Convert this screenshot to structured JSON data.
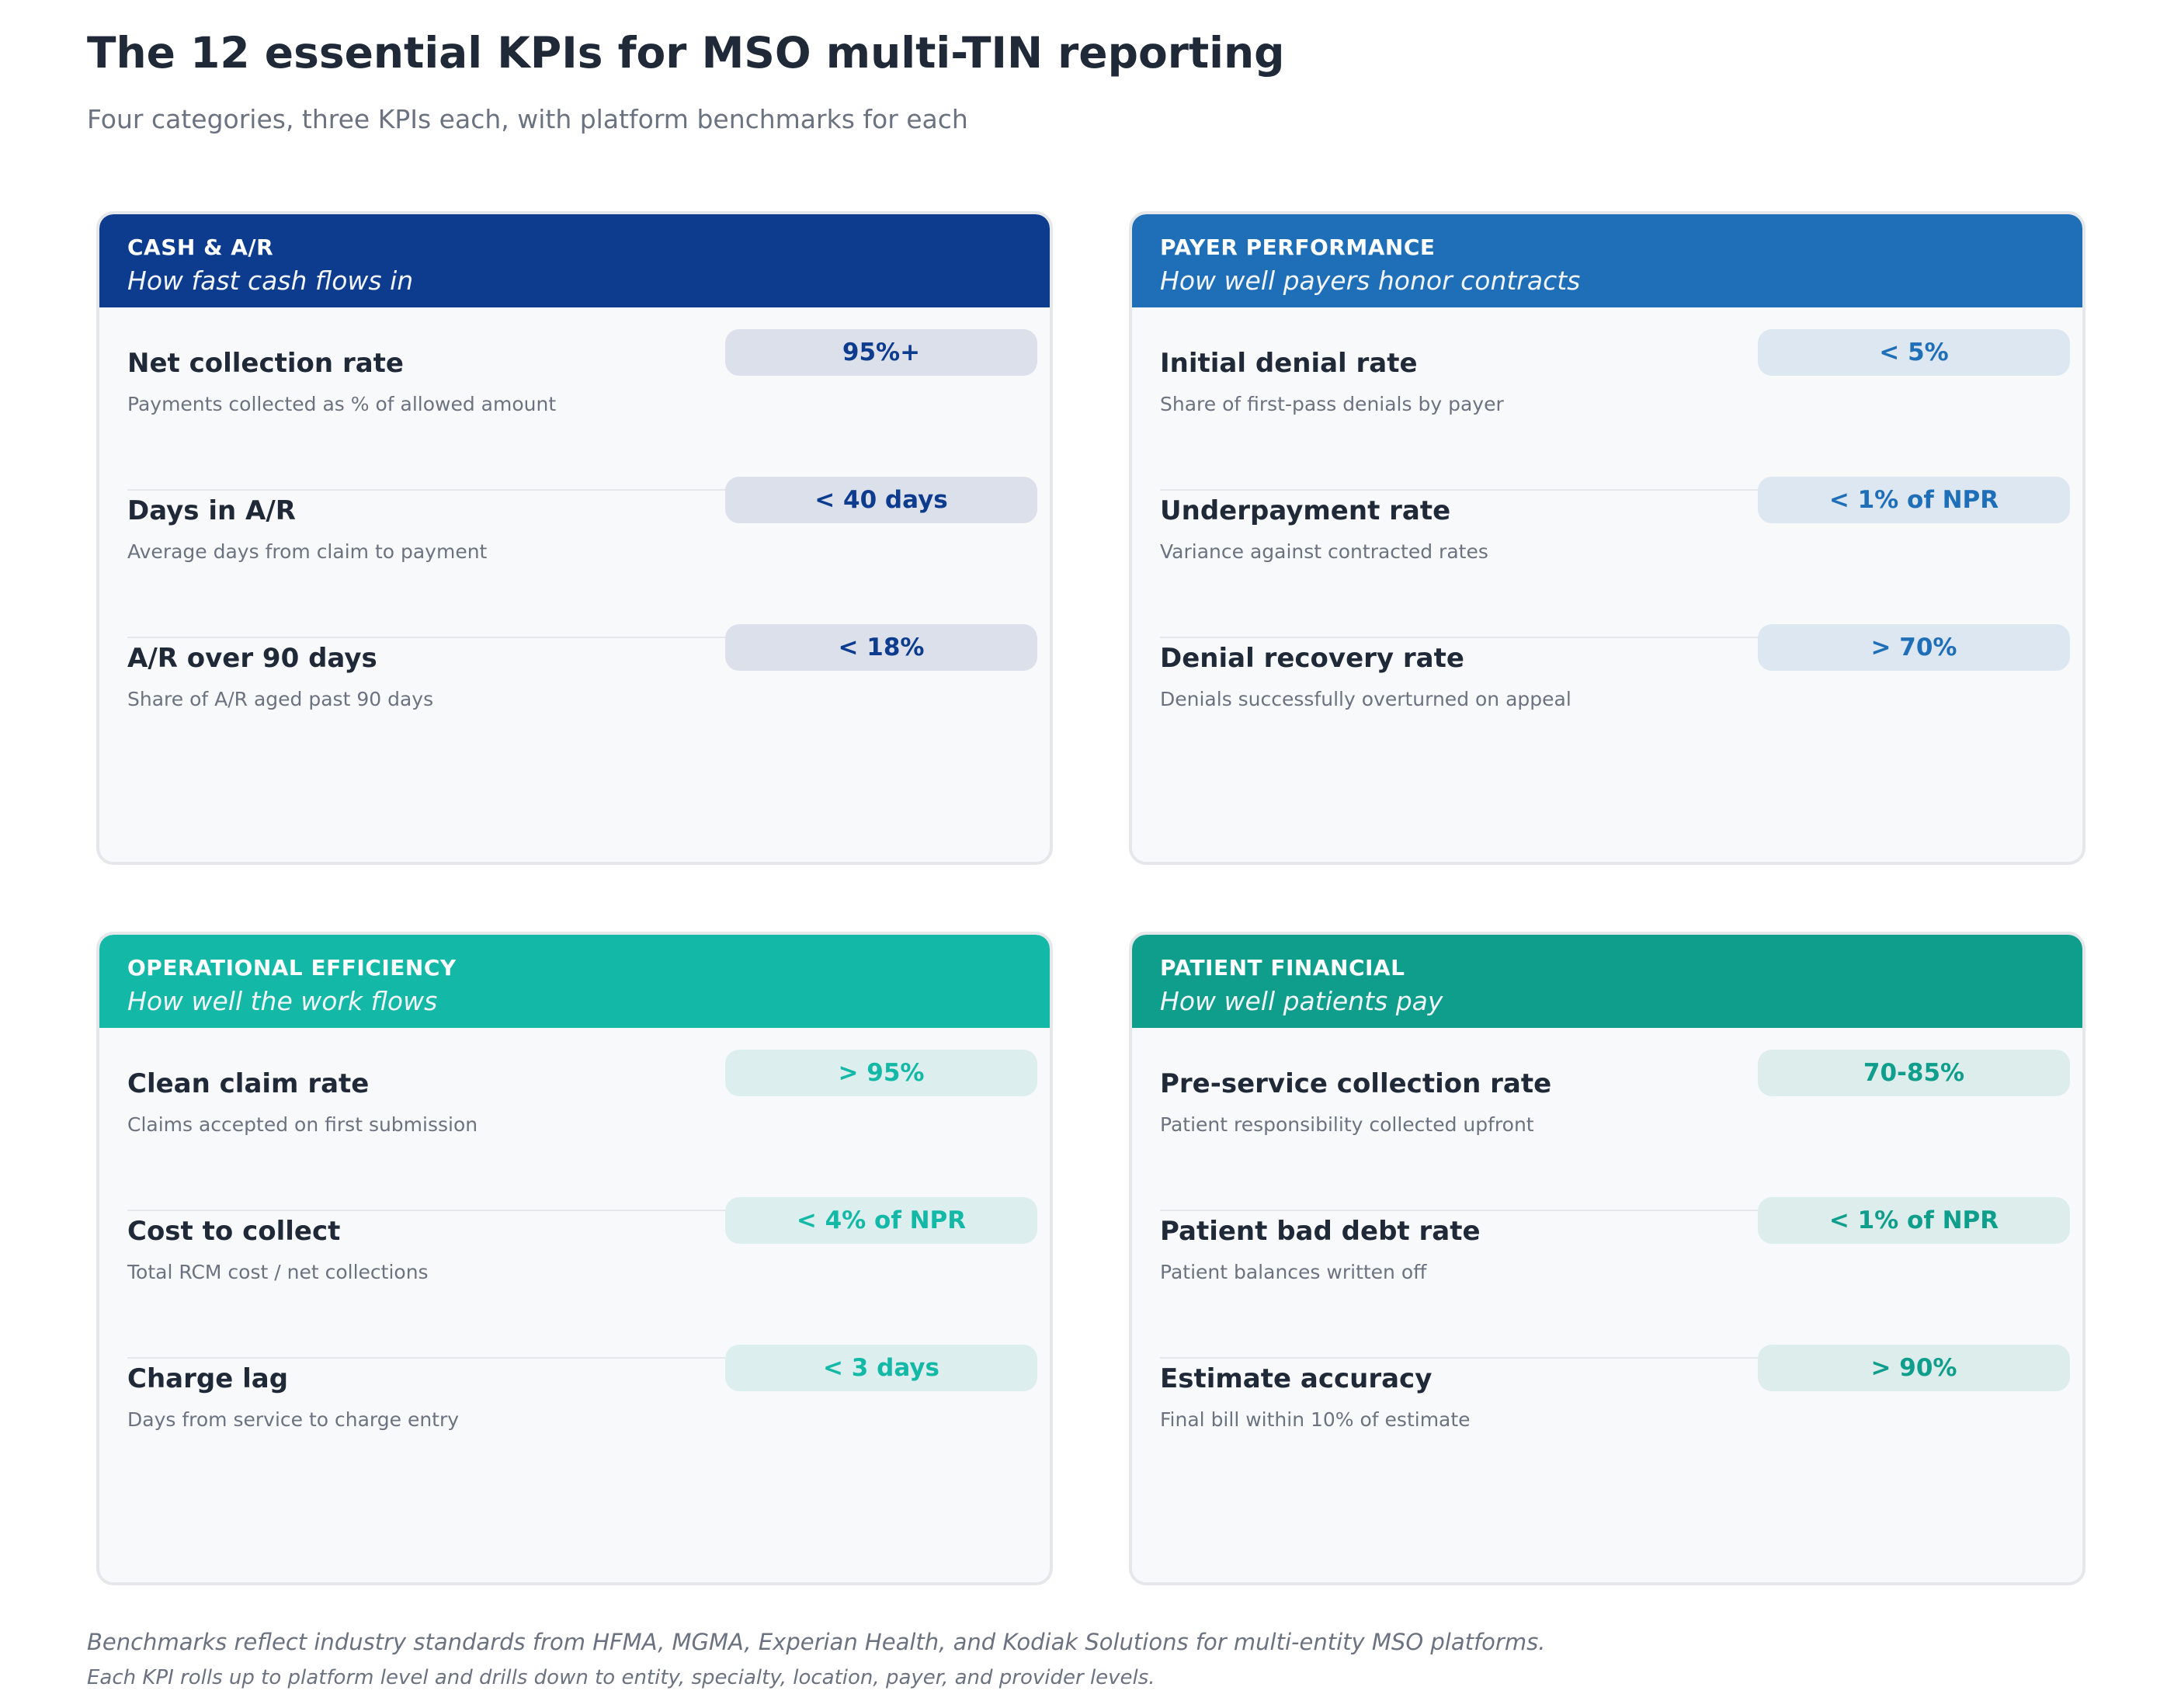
{
  "title": "The 12 essential KPIs for MSO multi-TIN reporting",
  "subtitle": "Four categories, three KPIs each, with platform benchmarks for each",
  "categories": [
    {
      "label": "CASH & A/R",
      "tagline": "How fast cash flows in",
      "header_color": "#0d3b8e",
      "badge_bg": "#dbe0eb",
      "badge_text_color": "#0d3b8e",
      "kpis": [
        {
          "name": "Net collection rate",
          "description": "Payments collected as % of allowed amount",
          "benchmark": "95%+"
        },
        {
          "name": "Days in A/R",
          "description": "Average days from claim to payment",
          "benchmark": "< 40 days"
        },
        {
          "name": "A/R over 90 days",
          "description": "Share of A/R aged past 90 days",
          "benchmark": "< 18%"
        }
      ]
    },
    {
      "label": "PAYER PERFORMANCE",
      "tagline": "How well payers honor contracts",
      "header_color": "#1f6fb8",
      "badge_bg": "#dde7f1",
      "badge_text_color": "#1f6fb8",
      "kpis": [
        {
          "name": "Initial denial rate",
          "description": "Share of first-pass denials by payer",
          "benchmark": "< 5%"
        },
        {
          "name": "Underpayment rate",
          "description": "Variance against contracted rates",
          "benchmark": "< 1% of NPR"
        },
        {
          "name": "Denial recovery rate",
          "description": "Denials successfully overturned on appeal",
          "benchmark": "> 70%"
        }
      ]
    },
    {
      "label": "OPERATIONAL EFFICIENCY",
      "tagline": "How well the work flows",
      "header_color": "#14b8a6",
      "badge_bg": "#dcefee",
      "badge_text_color": "#14b8a6",
      "kpis": [
        {
          "name": "Clean claim rate",
          "description": "Claims accepted on first submission",
          "benchmark": "> 95%"
        },
        {
          "name": "Cost to collect",
          "description": "Total RCM cost / net collections",
          "benchmark": "< 4% of NPR"
        },
        {
          "name": "Charge lag",
          "description": "Days from service to charge entry",
          "benchmark": "< 3 days"
        }
      ]
    },
    {
      "label": "PATIENT FINANCIAL",
      "tagline": "How well patients pay",
      "header_color": "#0f9e8c",
      "badge_bg": "#dcedec",
      "badge_text_color": "#0f9e8c",
      "kpis": [
        {
          "name": "Pre-service collection rate",
          "description": "Patient responsibility collected upfront",
          "benchmark": "70-85%"
        },
        {
          "name": "Patient bad debt rate",
          "description": "Patient balances written off",
          "benchmark": "< 1% of NPR"
        },
        {
          "name": "Estimate accuracy",
          "description": "Final bill within 10% of estimate",
          "benchmark": "> 90%"
        }
      ]
    }
  ],
  "footnote_1": "Benchmarks reflect industry standards from HFMA, MGMA, Experian Health, and Kodiak Solutions for multi-entity MSO platforms.",
  "footnote_2": "Each KPI rolls up to platform level and drills down to entity, specialty, location, payer, and provider levels."
}
